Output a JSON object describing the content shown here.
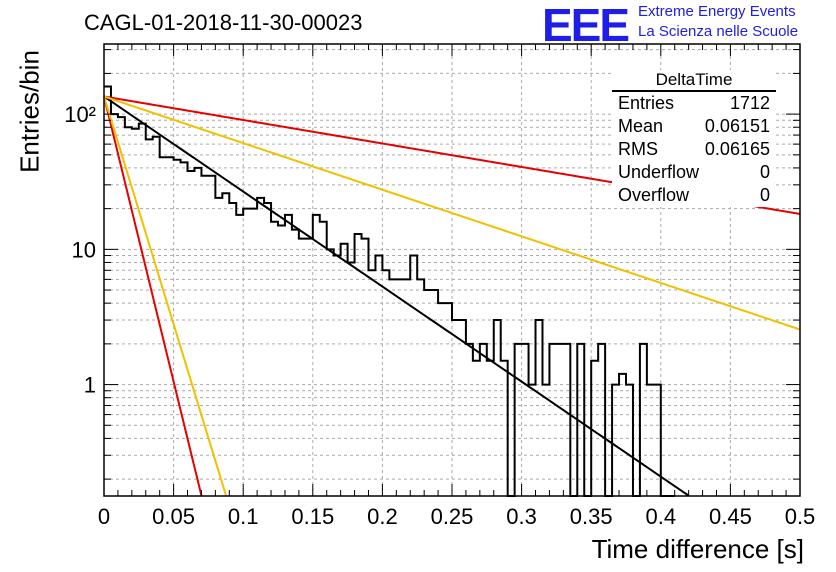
{
  "chart_data": {
    "type": "histogram",
    "title": "CAGL-01-2018-11-30-00023",
    "xlabel": "Time difference [s]",
    "ylabel": "Entries/bin",
    "xlim": [
      0,
      0.5
    ],
    "ylim": [
      0.15,
      330
    ],
    "yscale": "log",
    "grid": true,
    "x_ticks": [
      "0",
      "0.05",
      "0.1",
      "0.15",
      "0.2",
      "0.25",
      "0.3",
      "0.35",
      "0.4",
      "0.45",
      "0.5"
    ],
    "y_ticks": [
      "1",
      "10",
      "10²"
    ],
    "bin_width": 0.005,
    "histogram_values": [
      160,
      100,
      95,
      80,
      78,
      85,
      65,
      68,
      48,
      48,
      46,
      44,
      38,
      40,
      35,
      35,
      24,
      26,
      22,
      18,
      20,
      20,
      24,
      22,
      16,
      15,
      18,
      14,
      12,
      12,
      18,
      16,
      10,
      9,
      11,
      8,
      13,
      12,
      7,
      9,
      7,
      6,
      6,
      6,
      9,
      6,
      5,
      5,
      4,
      4,
      3,
      3,
      2,
      1.5,
      2,
      1.5,
      3,
      1.5,
      0,
      2,
      2,
      1,
      3,
      1,
      2,
      2,
      2,
      0,
      2,
      0,
      1.5,
      2,
      0,
      1,
      1.2,
      1,
      0,
      2,
      1,
      1,
      0,
      0
    ],
    "fit_curves": [
      {
        "label": "fit-black",
        "color": "#000000",
        "type": "exponential",
        "amplitude": 135,
        "tau": 0.0618,
        "x_range": [
          0,
          0.42
        ]
      },
      {
        "label": "fit-red-shallow",
        "color": "#e60000",
        "type": "exponential",
        "amplitude": 135,
        "tau": 0.25,
        "x_range": [
          0,
          0.5
        ]
      },
      {
        "label": "fit-yellow-shallow",
        "color": "#f2c000",
        "type": "exponential",
        "amplitude": 135,
        "tau": 0.126,
        "x_range": [
          0,
          0.5
        ]
      },
      {
        "label": "fit-red-steep",
        "color": "#e60000",
        "type": "exponential",
        "amplitude": 135,
        "tau": 0.0103,
        "x_range": [
          0,
          0.07
        ]
      },
      {
        "label": "fit-yellow-steep",
        "color": "#f2c000",
        "type": "exponential",
        "amplitude": 135,
        "tau": 0.0129,
        "x_range": [
          0,
          0.088
        ]
      }
    ],
    "stats_box": {
      "title": "DeltaTime",
      "rows": [
        {
          "label": "Entries",
          "value": "1712"
        },
        {
          "label": "Mean",
          "value": "0.06151"
        },
        {
          "label": "RMS",
          "value": "0.06165"
        },
        {
          "label": "Underflow",
          "value": "0"
        },
        {
          "label": "Overflow",
          "value": "0"
        }
      ]
    }
  },
  "logo": {
    "text": "EEE",
    "line1": "Extreme Energy Events",
    "line2": "La Scienza nelle Scuole"
  },
  "colors": {
    "logo": "#1e1ee6",
    "red": "#e60000",
    "yellow": "#f2c000"
  }
}
